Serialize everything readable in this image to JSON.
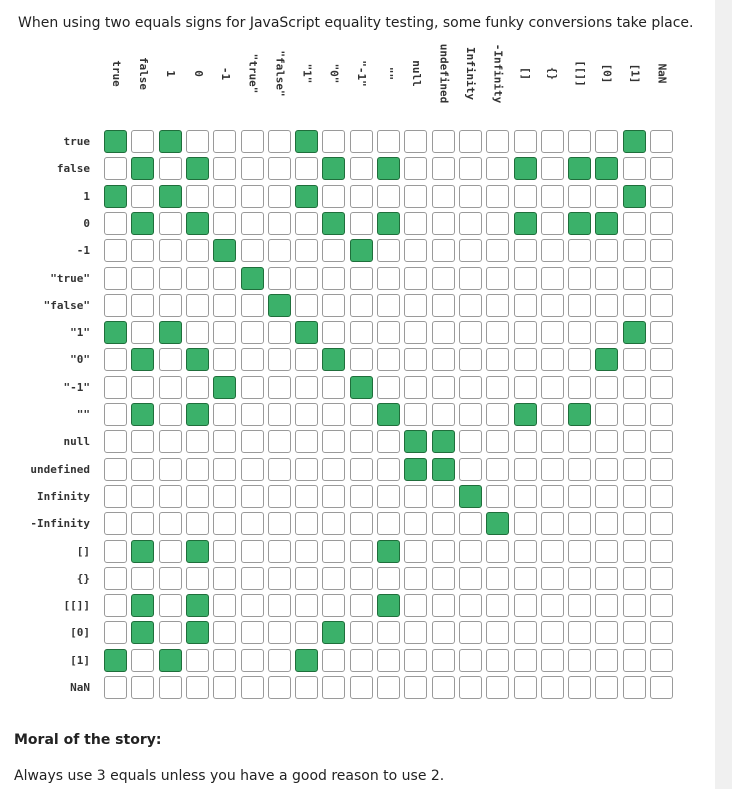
{
  "intro": "When using two equals signs for JavaScript equality testing, some funky conversions take place.",
  "column_labels": [
    "true",
    "false",
    "1",
    "0",
    "-1",
    "\"true\"",
    "\"false\"",
    "\"1\"",
    "\"0\"",
    "\"-1\"",
    "\"\"",
    "null",
    "undefined",
    "Infinity",
    "-Infinity",
    "[]",
    "{}",
    "[[]]",
    "[0]",
    "[1]",
    "NaN"
  ],
  "row_labels": [
    "true",
    "false",
    "1",
    "0",
    "-1",
    "\"true\"",
    "\"false\"",
    "\"1\"",
    "\"0\"",
    "\"-1\"",
    "\"\"",
    "null",
    "undefined",
    "Infinity",
    "-Infinity",
    "[]",
    "{}",
    "[[]]",
    "[0]",
    "[1]",
    "NaN"
  ],
  "matrix": [
    [
      1,
      0,
      1,
      0,
      0,
      0,
      0,
      1,
      0,
      0,
      0,
      0,
      0,
      0,
      0,
      0,
      0,
      0,
      0,
      1,
      0
    ],
    [
      0,
      1,
      0,
      1,
      0,
      0,
      0,
      0,
      1,
      0,
      1,
      0,
      0,
      0,
      0,
      1,
      0,
      1,
      1,
      0,
      0
    ],
    [
      1,
      0,
      1,
      0,
      0,
      0,
      0,
      1,
      0,
      0,
      0,
      0,
      0,
      0,
      0,
      0,
      0,
      0,
      0,
      1,
      0
    ],
    [
      0,
      1,
      0,
      1,
      0,
      0,
      0,
      0,
      1,
      0,
      1,
      0,
      0,
      0,
      0,
      1,
      0,
      1,
      1,
      0,
      0
    ],
    [
      0,
      0,
      0,
      0,
      1,
      0,
      0,
      0,
      0,
      1,
      0,
      0,
      0,
      0,
      0,
      0,
      0,
      0,
      0,
      0,
      0
    ],
    [
      0,
      0,
      0,
      0,
      0,
      1,
      0,
      0,
      0,
      0,
      0,
      0,
      0,
      0,
      0,
      0,
      0,
      0,
      0,
      0,
      0
    ],
    [
      0,
      0,
      0,
      0,
      0,
      0,
      1,
      0,
      0,
      0,
      0,
      0,
      0,
      0,
      0,
      0,
      0,
      0,
      0,
      0,
      0
    ],
    [
      1,
      0,
      1,
      0,
      0,
      0,
      0,
      1,
      0,
      0,
      0,
      0,
      0,
      0,
      0,
      0,
      0,
      0,
      0,
      1,
      0
    ],
    [
      0,
      1,
      0,
      1,
      0,
      0,
      0,
      0,
      1,
      0,
      0,
      0,
      0,
      0,
      0,
      0,
      0,
      0,
      1,
      0,
      0
    ],
    [
      0,
      0,
      0,
      0,
      1,
      0,
      0,
      0,
      0,
      1,
      0,
      0,
      0,
      0,
      0,
      0,
      0,
      0,
      0,
      0,
      0
    ],
    [
      0,
      1,
      0,
      1,
      0,
      0,
      0,
      0,
      0,
      0,
      1,
      0,
      0,
      0,
      0,
      1,
      0,
      1,
      0,
      0,
      0
    ],
    [
      0,
      0,
      0,
      0,
      0,
      0,
      0,
      0,
      0,
      0,
      0,
      1,
      1,
      0,
      0,
      0,
      0,
      0,
      0,
      0,
      0
    ],
    [
      0,
      0,
      0,
      0,
      0,
      0,
      0,
      0,
      0,
      0,
      0,
      1,
      1,
      0,
      0,
      0,
      0,
      0,
      0,
      0,
      0
    ],
    [
      0,
      0,
      0,
      0,
      0,
      0,
      0,
      0,
      0,
      0,
      0,
      0,
      0,
      1,
      0,
      0,
      0,
      0,
      0,
      0,
      0
    ],
    [
      0,
      0,
      0,
      0,
      0,
      0,
      0,
      0,
      0,
      0,
      0,
      0,
      0,
      0,
      1,
      0,
      0,
      0,
      0,
      0,
      0
    ],
    [
      0,
      1,
      0,
      1,
      0,
      0,
      0,
      0,
      0,
      0,
      1,
      0,
      0,
      0,
      0,
      0,
      0,
      0,
      0,
      0,
      0
    ],
    [
      0,
      0,
      0,
      0,
      0,
      0,
      0,
      0,
      0,
      0,
      0,
      0,
      0,
      0,
      0,
      0,
      0,
      0,
      0,
      0,
      0
    ],
    [
      0,
      1,
      0,
      1,
      0,
      0,
      0,
      0,
      0,
      0,
      1,
      0,
      0,
      0,
      0,
      0,
      0,
      0,
      0,
      0,
      0
    ],
    [
      0,
      1,
      0,
      1,
      0,
      0,
      0,
      0,
      1,
      0,
      0,
      0,
      0,
      0,
      0,
      0,
      0,
      0,
      0,
      0,
      0
    ],
    [
      1,
      0,
      1,
      0,
      0,
      0,
      0,
      1,
      0,
      0,
      0,
      0,
      0,
      0,
      0,
      0,
      0,
      0,
      0,
      0,
      0
    ],
    [
      0,
      0,
      0,
      0,
      0,
      0,
      0,
      0,
      0,
      0,
      0,
      0,
      0,
      0,
      0,
      0,
      0,
      0,
      0,
      0,
      0
    ]
  ],
  "colors": {
    "equal": "#3bb16a",
    "equal_border": "#1f6e3b",
    "not_equal": "#ffffff",
    "not_equal_border": "#9a9a9a"
  },
  "moral": {
    "title": "Moral of the story:",
    "text": "Always use 3 equals unless you have a good reason to use 2."
  }
}
